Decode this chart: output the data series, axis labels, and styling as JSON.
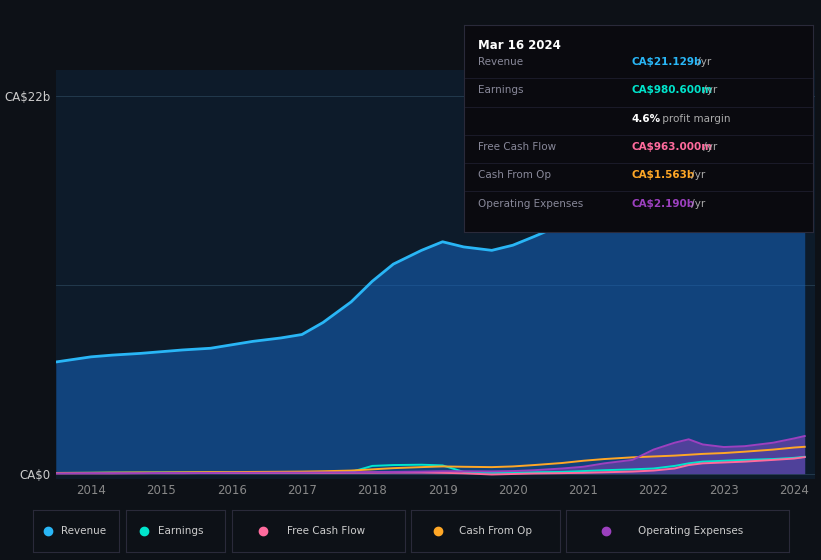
{
  "bg_color": "#0d1117",
  "plot_bg_color": "#0d1b2a",
  "grid_color": "#263e52",
  "years": [
    2013.5,
    2014.0,
    2014.3,
    2014.7,
    2015.0,
    2015.3,
    2015.7,
    2016.0,
    2016.3,
    2016.7,
    2017.0,
    2017.3,
    2017.7,
    2018.0,
    2018.3,
    2018.7,
    2019.0,
    2019.3,
    2019.7,
    2020.0,
    2020.3,
    2020.7,
    2021.0,
    2021.3,
    2021.7,
    2022.0,
    2022.3,
    2022.5,
    2022.7,
    2023.0,
    2023.3,
    2023.7,
    2024.0,
    2024.15
  ],
  "revenue": [
    6.5,
    6.8,
    6.9,
    7.0,
    7.1,
    7.2,
    7.3,
    7.5,
    7.7,
    7.9,
    8.1,
    8.8,
    10.0,
    11.2,
    12.2,
    13.0,
    13.5,
    13.2,
    13.0,
    13.3,
    13.8,
    14.5,
    15.2,
    15.8,
    16.0,
    16.2,
    16.3,
    16.5,
    16.8,
    17.5,
    18.5,
    20.0,
    21.5,
    21.129
  ],
  "earnings": [
    0.04,
    0.05,
    0.06,
    0.06,
    0.07,
    0.07,
    0.07,
    0.08,
    0.08,
    0.09,
    0.09,
    0.1,
    0.1,
    0.45,
    0.5,
    0.52,
    0.48,
    0.1,
    0.05,
    0.06,
    0.08,
    0.1,
    0.15,
    0.2,
    0.25,
    0.3,
    0.45,
    0.6,
    0.7,
    0.75,
    0.8,
    0.85,
    0.92,
    0.9806
  ],
  "free_cash_flow": [
    0.02,
    0.02,
    0.02,
    0.03,
    0.03,
    0.03,
    0.04,
    0.04,
    0.04,
    0.05,
    0.05,
    0.05,
    0.06,
    0.06,
    0.07,
    0.07,
    0.05,
    0.02,
    -0.05,
    -0.02,
    0.01,
    0.03,
    0.05,
    0.08,
    0.12,
    0.18,
    0.3,
    0.5,
    0.6,
    0.65,
    0.7,
    0.8,
    0.88,
    0.963
  ],
  "cash_from_op": [
    0.04,
    0.05,
    0.06,
    0.07,
    0.07,
    0.08,
    0.09,
    0.09,
    0.1,
    0.11,
    0.12,
    0.14,
    0.18,
    0.25,
    0.32,
    0.38,
    0.42,
    0.4,
    0.38,
    0.42,
    0.5,
    0.62,
    0.75,
    0.85,
    0.95,
    1.0,
    1.05,
    1.1,
    1.15,
    1.2,
    1.28,
    1.4,
    1.52,
    1.563
  ],
  "operating_expenses": [
    0.02,
    0.03,
    0.03,
    0.03,
    0.04,
    0.04,
    0.04,
    0.05,
    0.05,
    0.06,
    0.06,
    0.07,
    0.08,
    0.09,
    0.1,
    0.12,
    0.14,
    0.14,
    0.13,
    0.15,
    0.2,
    0.3,
    0.4,
    0.6,
    0.8,
    1.4,
    1.8,
    2.0,
    1.7,
    1.55,
    1.6,
    1.8,
    2.05,
    2.19
  ],
  "revenue_color": "#29b6f6",
  "earnings_color": "#00e5cc",
  "free_cash_flow_color": "#ff6b9d",
  "cash_from_op_color": "#ffa726",
  "operating_expenses_color": "#9c40bf",
  "revenue_fill_alpha": 0.55,
  "operating_expenses_fill_alpha": 0.45,
  "xlim": [
    2013.5,
    2024.3
  ],
  "ylim": [
    -0.3,
    23.5
  ],
  "ytick_positions": [
    0,
    22
  ],
  "ytick_labels": [
    "CA$0",
    "CA$22b"
  ],
  "xtick_positions": [
    2014,
    2015,
    2016,
    2017,
    2018,
    2019,
    2020,
    2021,
    2022,
    2023,
    2024
  ],
  "hgrid_values": [
    0,
    11,
    22
  ],
  "info_panel": {
    "date": "Mar 16 2024",
    "rows": [
      {
        "label": "Revenue",
        "value": "CA$21.129b",
        "color": "#29b6f6",
        "suffix": " /yr"
      },
      {
        "label": "Earnings",
        "value": "CA$980.600m",
        "color": "#00e5cc",
        "suffix": " /yr"
      },
      {
        "label": "",
        "value": "4.6%",
        "color": "#ffffff",
        "suffix": " profit margin"
      },
      {
        "label": "Free Cash Flow",
        "value": "CA$963.000m",
        "color": "#ff6b9d",
        "suffix": " /yr"
      },
      {
        "label": "Cash From Op",
        "value": "CA$1.563b",
        "color": "#ffa726",
        "suffix": " /yr"
      },
      {
        "label": "Operating Expenses",
        "value": "CA$2.190b",
        "color": "#9c40bf",
        "suffix": " /yr"
      }
    ]
  },
  "legend_items": [
    {
      "label": "Revenue",
      "color": "#29b6f6"
    },
    {
      "label": "Earnings",
      "color": "#00e5cc"
    },
    {
      "label": "Free Cash Flow",
      "color": "#ff6b9d"
    },
    {
      "label": "Cash From Op",
      "color": "#ffa726"
    },
    {
      "label": "Operating Expenses",
      "color": "#9c40bf"
    }
  ]
}
